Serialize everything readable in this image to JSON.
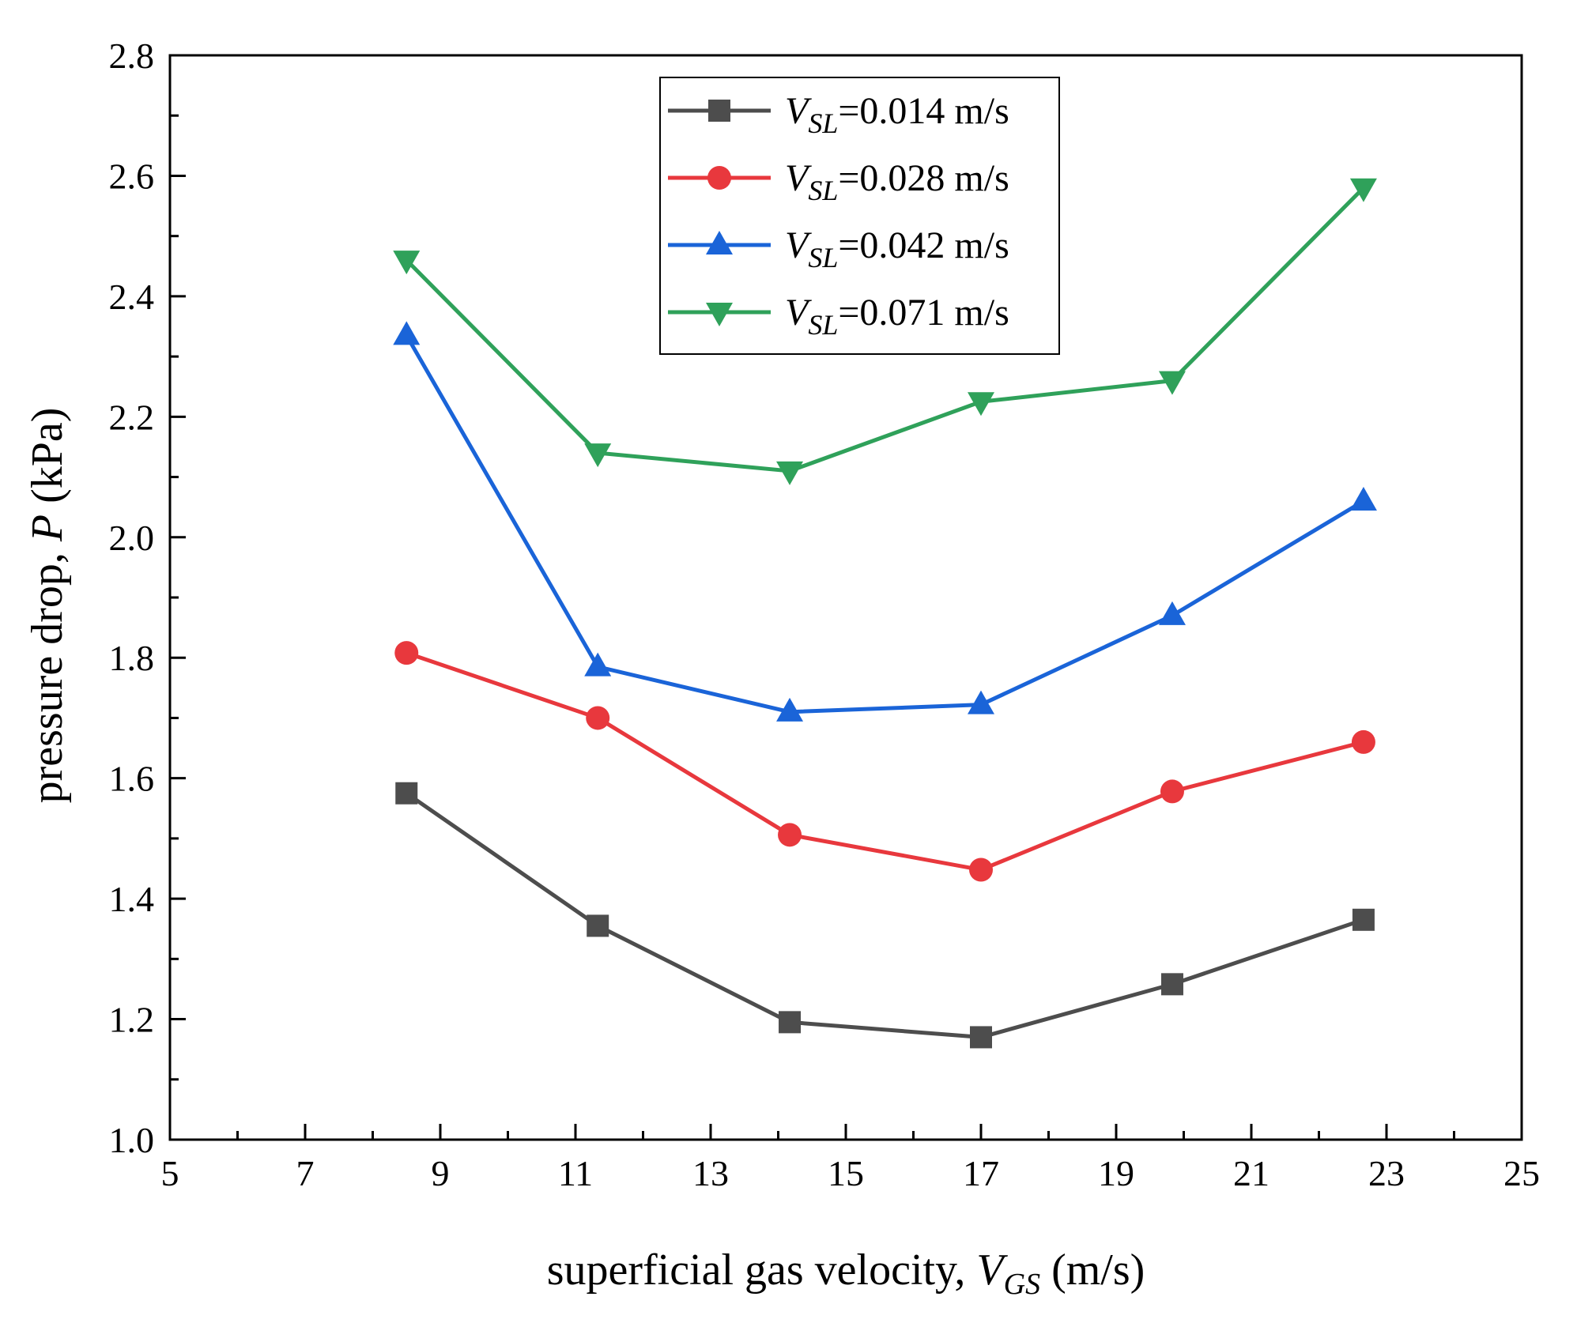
{
  "chart_data": {
    "type": "line",
    "title": "",
    "xlabel": {
      "prefix": "superficial gas velocity, ",
      "var": "V",
      "sub": "GS",
      "suffix": " (m/s)"
    },
    "ylabel": {
      "prefix": "pressure drop, ",
      "var": "P",
      "suffix": " (kPa)"
    },
    "xlim": [
      5,
      25
    ],
    "ylim": [
      1.0,
      2.8
    ],
    "xticks": [
      "5",
      "7",
      "9",
      "11",
      "13",
      "15",
      "17",
      "19",
      "21",
      "23",
      "25"
    ],
    "yticks": [
      "1.0",
      "1.2",
      "1.4",
      "1.6",
      "1.8",
      "2.0",
      "2.2",
      "2.4",
      "2.6",
      "2.8"
    ],
    "grid": false,
    "legend_position": "top-center",
    "x": [
      8.5,
      11.33,
      14.17,
      17.0,
      19.83,
      22.66
    ],
    "series": [
      {
        "name": "V_SL=0.014 m/s",
        "legend": {
          "var": "V",
          "sub": "SL",
          "text": "=0.014 m/s"
        },
        "color": "#4d4d4d",
        "marker": "square",
        "values": [
          1.575,
          1.355,
          1.195,
          1.17,
          1.258,
          1.365
        ]
      },
      {
        "name": "V_SL=0.028 m/s",
        "legend": {
          "var": "V",
          "sub": "SL",
          "text": "=0.028 m/s"
        },
        "color": "#e8383d",
        "marker": "circle",
        "values": [
          1.808,
          1.7,
          1.506,
          1.448,
          1.578,
          1.66
        ]
      },
      {
        "name": "V_SL=0.042 m/s",
        "legend": {
          "var": "V",
          "sub": "SL",
          "text": "=0.042 m/s"
        },
        "color": "#1a64d8",
        "marker": "triangle-up",
        "values": [
          2.335,
          1.785,
          1.71,
          1.722,
          1.87,
          2.06
        ]
      },
      {
        "name": "V_SL=0.071 m/s",
        "legend": {
          "var": "V",
          "sub": "SL",
          "text": "=0.071 m/s"
        },
        "color": "#2fa15a",
        "marker": "triangle-down",
        "values": [
          2.46,
          2.14,
          2.11,
          2.225,
          2.26,
          2.58
        ]
      }
    ]
  }
}
